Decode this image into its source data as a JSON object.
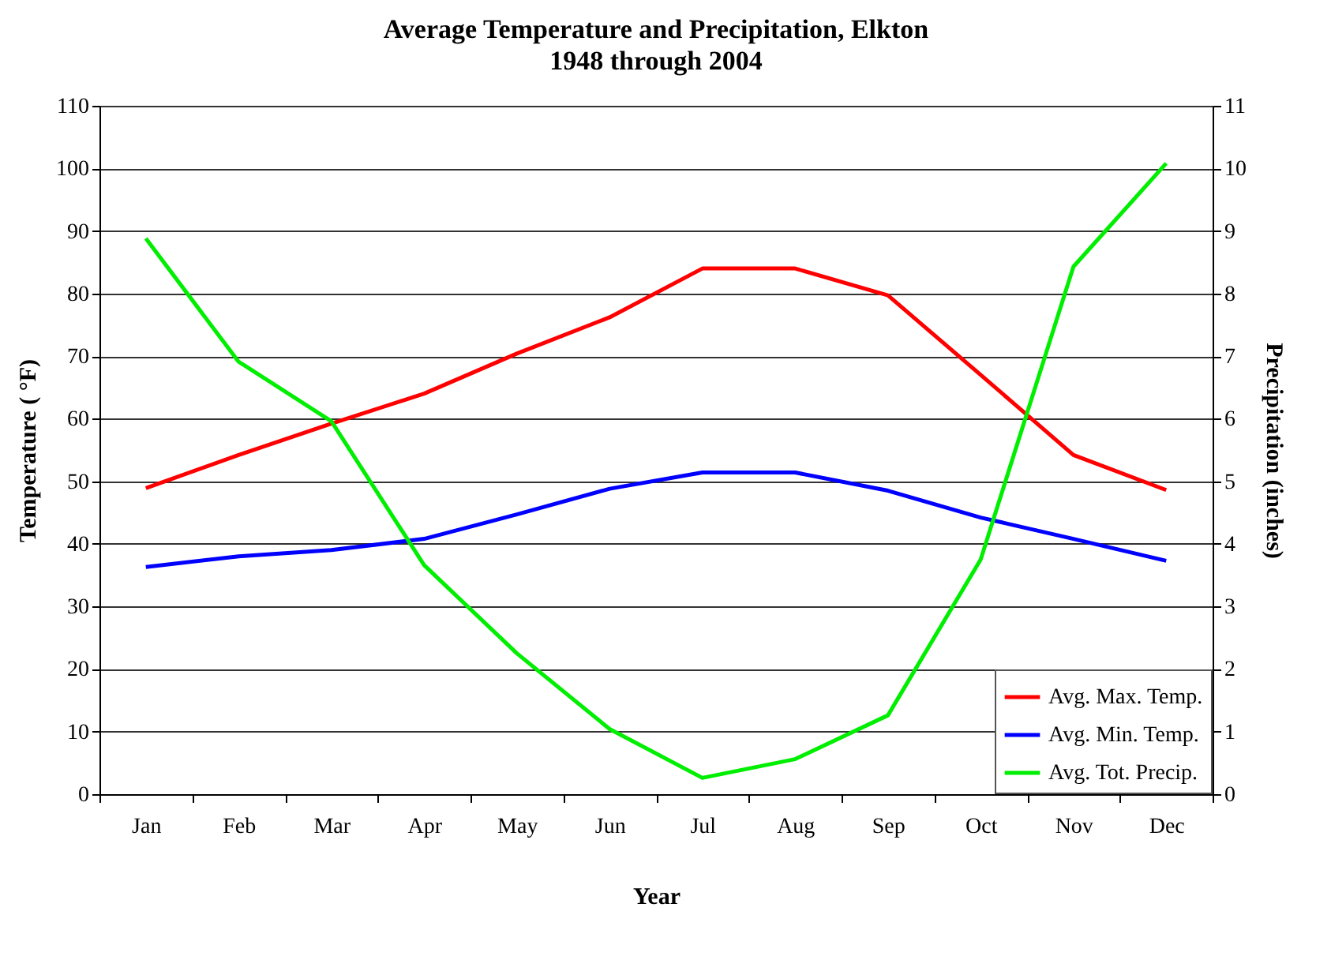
{
  "chart_data": {
    "type": "line",
    "title": "Average Temperature and Precipitation, Elkton",
    "subtitle": "1948 through 2004",
    "xlabel": "Year",
    "ylabel": "Temperature ( °F)",
    "y2label": "Precipitation (inches)",
    "categories": [
      "Jan",
      "Feb",
      "Mar",
      "Apr",
      "May",
      "Jun",
      "Jul",
      "Aug",
      "Sep",
      "Oct",
      "Nov",
      "Dec"
    ],
    "series": [
      {
        "name": "Avg. Max. Temp.",
        "color": "#ff0000",
        "values": [
          48.9,
          54.2,
          59.2,
          64,
          70.4,
          76.2,
          84,
          84,
          79.7,
          67,
          54.2,
          48.6
        ]
      },
      {
        "name": "Avg. Min. Temp.",
        "color": "#0000ff",
        "values": [
          36.3,
          38,
          39,
          40.8,
          44.7,
          48.8,
          51.4,
          51.4,
          48.5,
          44.2,
          40.8,
          37.3
        ]
      },
      {
        "name": "Avg. Tot. Precip.",
        "color": "#00ee00",
        "axis": "y2",
        "values": [
          8.88,
          6.91,
          5.96,
          3.66,
          2.25,
          1.04,
          0.26,
          0.56,
          1.26,
          3.75,
          8.43,
          10.08
        ]
      }
    ],
    "ylim": [
      0,
      110
    ],
    "yticks": [
      0,
      10,
      20,
      30,
      40,
      50,
      60,
      70,
      80,
      90,
      100,
      110
    ],
    "y2lim": [
      0,
      11
    ],
    "y2ticks": [
      0,
      1,
      2,
      3,
      4,
      5,
      6,
      7,
      8,
      9,
      10,
      11
    ],
    "grid": "y",
    "legend": "bottom right",
    "line_style": "solid"
  }
}
